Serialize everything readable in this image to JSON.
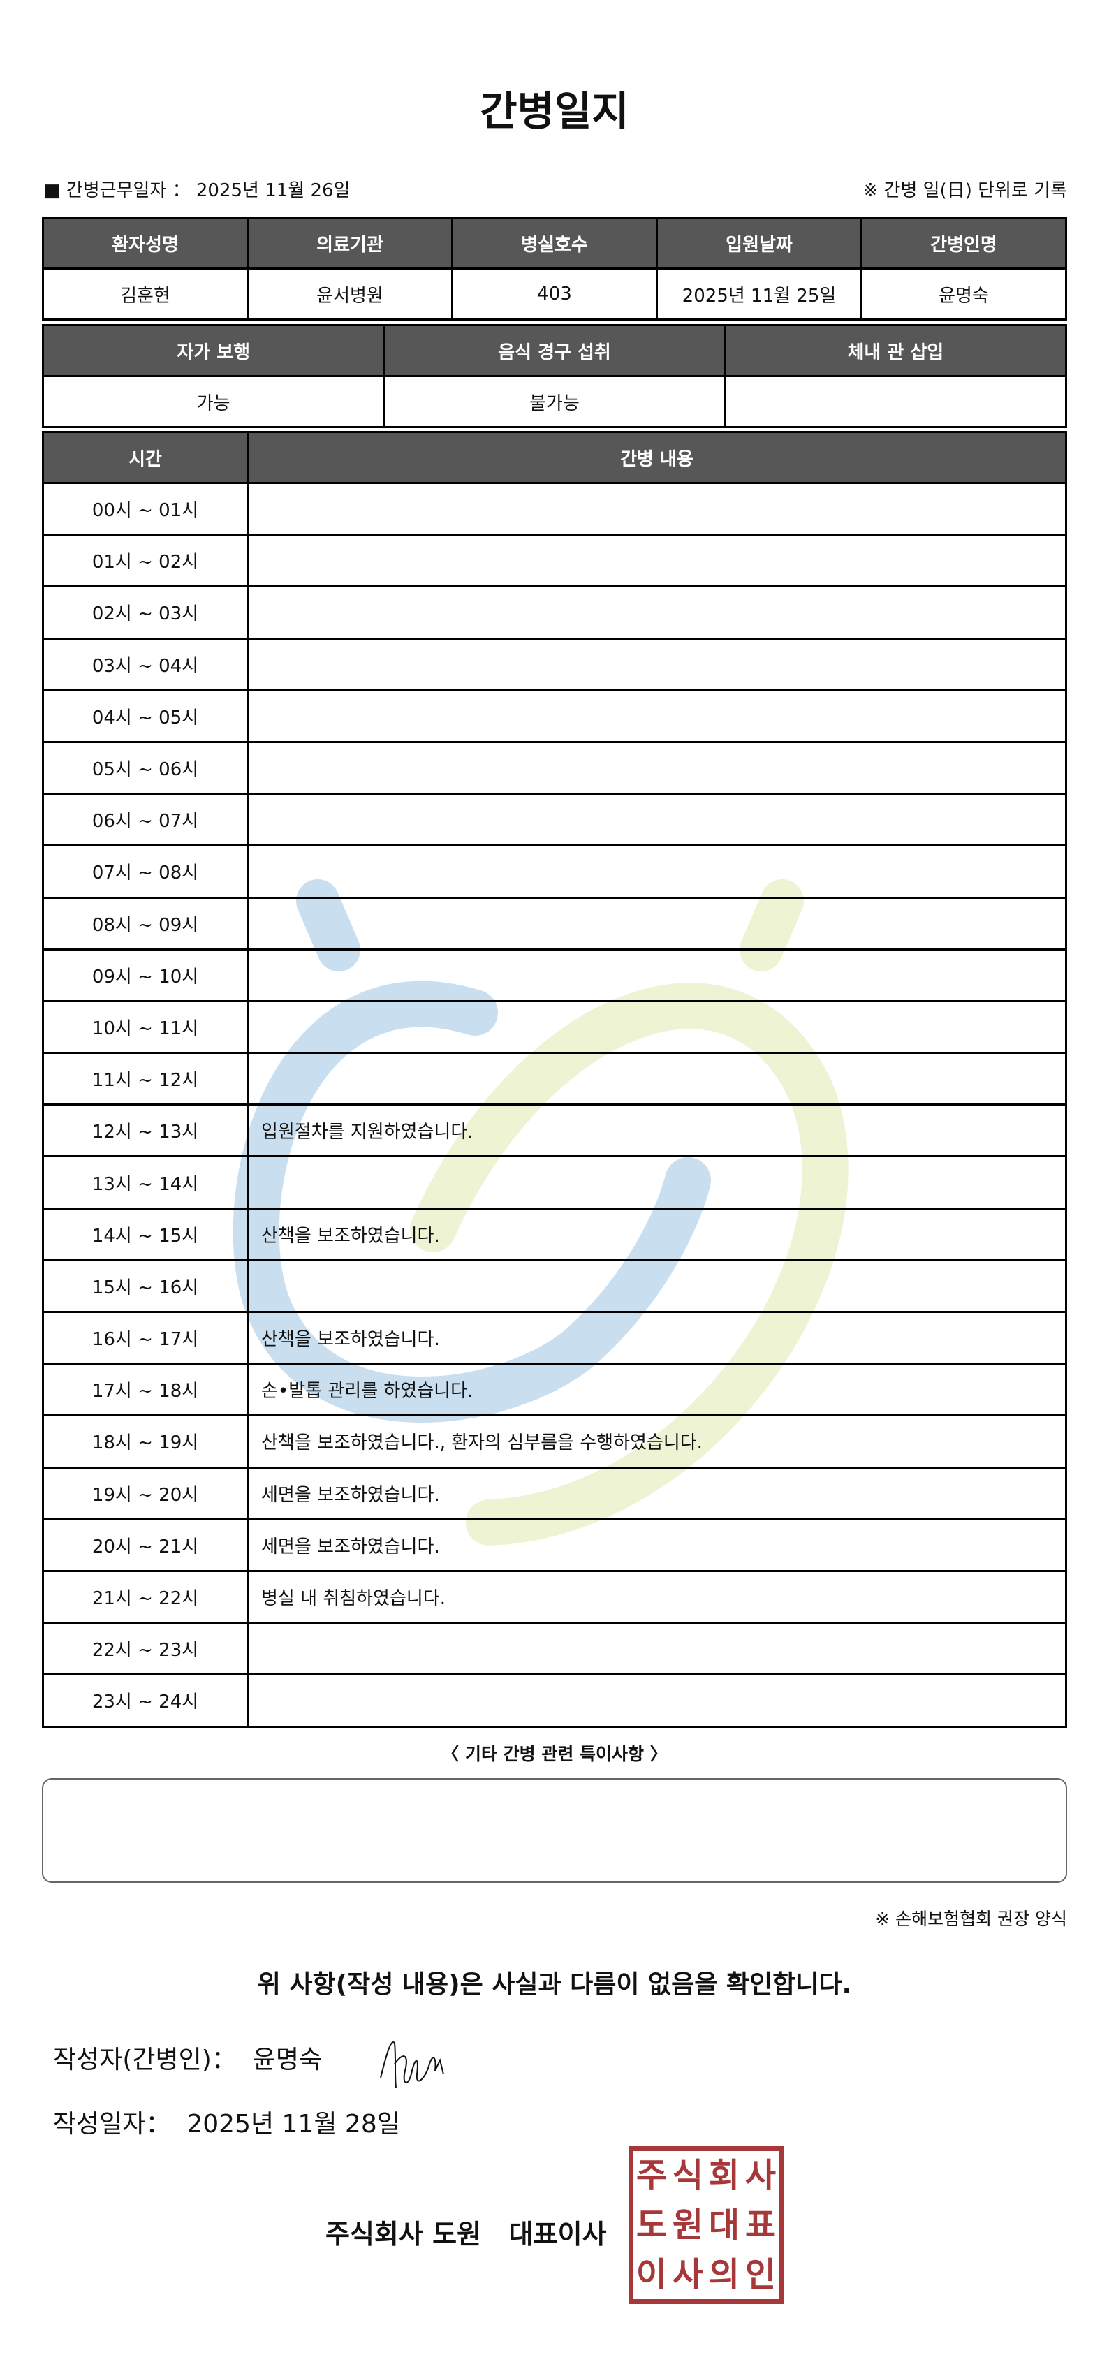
{
  "title": "간병일지",
  "work_date_label": "■ 간병근무일자 ：",
  "work_date": "2025년 11월 26일",
  "record_note": "※ 간병 일(日) 단위로 기록",
  "patient_table": {
    "headers": [
      "환자성명",
      "의료기관",
      "병실호수",
      "입원날짜",
      "간병인명"
    ],
    "values": [
      "김훈현",
      "윤서병원",
      "403",
      "2025년 11월 25일",
      "윤명숙"
    ]
  },
  "status_table": {
    "headers": [
      "자가 보행",
      "음식 경구 섭취",
      "체내 관 삽입"
    ],
    "values": [
      "가능",
      "불가능",
      ""
    ]
  },
  "log_table": {
    "headers": [
      "시간",
      "간병 내용"
    ],
    "rows": [
      {
        "time": "00시 ~ 01시",
        "content": ""
      },
      {
        "time": "01시 ~ 02시",
        "content": ""
      },
      {
        "time": "02시 ~ 03시",
        "content": ""
      },
      {
        "time": "03시 ~ 04시",
        "content": ""
      },
      {
        "time": "04시 ~ 05시",
        "content": ""
      },
      {
        "time": "05시 ~ 06시",
        "content": ""
      },
      {
        "time": "06시 ~ 07시",
        "content": ""
      },
      {
        "time": "07시 ~ 08시",
        "content": ""
      },
      {
        "time": "08시 ~ 09시",
        "content": ""
      },
      {
        "time": "09시 ~ 10시",
        "content": ""
      },
      {
        "time": "10시 ~ 11시",
        "content": ""
      },
      {
        "time": "11시 ~ 12시",
        "content": ""
      },
      {
        "time": "12시 ~ 13시",
        "content": "입원절차를 지원하였습니다."
      },
      {
        "time": "13시 ~ 14시",
        "content": ""
      },
      {
        "time": "14시 ~ 15시",
        "content": "산책을 보조하였습니다."
      },
      {
        "time": "15시 ~ 16시",
        "content": ""
      },
      {
        "time": "16시 ~ 17시",
        "content": "산책을 보조하였습니다."
      },
      {
        "time": "17시 ~ 18시",
        "content": "손•발톱 관리를 하였습니다."
      },
      {
        "time": "18시 ~ 19시",
        "content": "산책을 보조하였습니다., 환자의 심부름을 수행하였습니다."
      },
      {
        "time": "19시 ~ 20시",
        "content": "세면을 보조하였습니다."
      },
      {
        "time": "20시 ~ 21시",
        "content": "세면을 보조하였습니다."
      },
      {
        "time": "21시 ~ 22시",
        "content": "병실 내 취침하였습니다."
      },
      {
        "time": "22시 ~ 23시",
        "content": ""
      },
      {
        "time": "23시 ~ 24시",
        "content": ""
      }
    ]
  },
  "special_notes_heading": "〈 기타 간병 관련 특이사항 〉",
  "special_notes": "",
  "form_note": "※ 손해보험협회 권장 양식",
  "confirmation": "위 사항(작성 내용)은 사실과 다름이 없음을 확인합니다.",
  "writer_label": "작성자(간병인)：",
  "writer_name": "윤명숙",
  "written_date_label": "작성일자：",
  "written_date": "2025년 11월 28일",
  "company": "주식회사 도원   대표이사",
  "stamp_text": "주식회사도원대표이사의인",
  "colors": {
    "header_bg": "#575757",
    "stamp": "#a0282a",
    "watermark_blue": "#c9dff0",
    "watermark_green": "#eef3d4"
  }
}
